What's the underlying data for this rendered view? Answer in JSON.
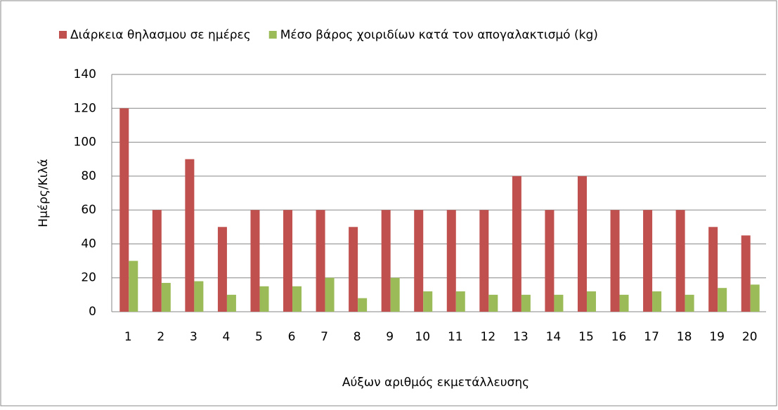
{
  "chart_data": {
    "type": "bar",
    "x_label": "Αύξων αριθμός εκμετάλλευσης",
    "y_label": "Ημέρς/Κιλά",
    "categories": [
      "1",
      "2",
      "3",
      "4",
      "5",
      "6",
      "7",
      "8",
      "9",
      "10",
      "11",
      "12",
      "13",
      "14",
      "15",
      "16",
      "17",
      "18",
      "19",
      "20"
    ],
    "series": [
      {
        "name": "Διάρκεια θηλασμου σε ημέρες",
        "color": "#c0504d",
        "values": [
          120,
          60,
          90,
          50,
          60,
          60,
          60,
          50,
          60,
          60,
          60,
          60,
          80,
          60,
          80,
          60,
          60,
          60,
          50,
          45
        ]
      },
      {
        "name": "Μέσο βάρος χοιριδίων κατά τον απογαλακτισμό (kg)",
        "color": "#9bbb59",
        "values": [
          30,
          17,
          18,
          10,
          15,
          15,
          20,
          8,
          20,
          12,
          12,
          10,
          10,
          10,
          12,
          10,
          12,
          10,
          14,
          16
        ]
      }
    ],
    "ylim": [
      0,
      140
    ],
    "yticks": [
      0,
      20,
      40,
      60,
      80,
      100,
      120,
      140
    ],
    "grid": true,
    "legend": "top"
  }
}
